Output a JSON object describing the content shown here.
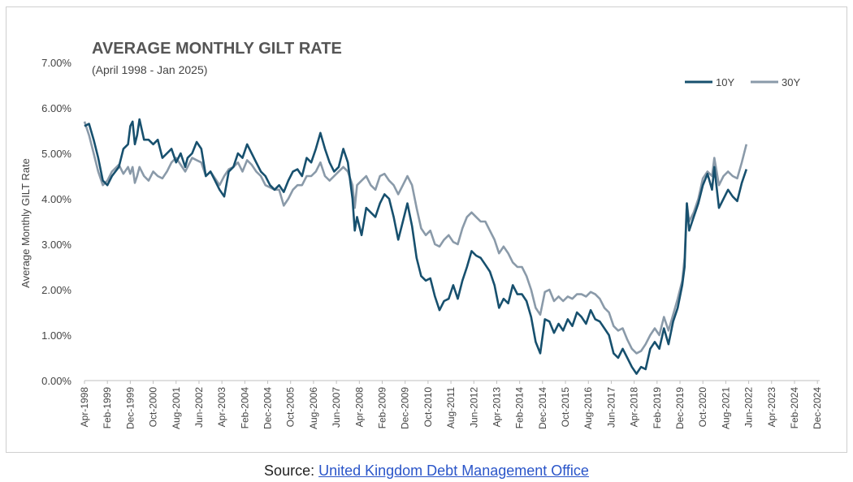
{
  "chart_data": {
    "type": "line",
    "title": "AVERAGE MONTHLY GILT RATE",
    "subtitle": "(April 1998 - Jan 2025)",
    "ylabel": "Average Monthly GILT Rate",
    "xlabel": "",
    "ylim": [
      0,
      7
    ],
    "ytick_labels": [
      "0.00%",
      "1.00%",
      "2.00%",
      "3.00%",
      "4.00%",
      "5.00%",
      "6.00%",
      "7.00%"
    ],
    "xtick_labels": [
      "Apr-1998",
      "Feb-1999",
      "Dec-1999",
      "Oct-2000",
      "Aug-2001",
      "Jun-2002",
      "Apr-2003",
      "Feb-2004",
      "Dec-2004",
      "Oct-2005",
      "Aug-2006",
      "Jun-2007",
      "Apr-2008",
      "Feb-2009",
      "Dec-2009",
      "Oct-2010",
      "Aug-2011",
      "Jun-2012",
      "Apr-2013",
      "Feb-2014",
      "Dec-2014",
      "Oct-2015",
      "Aug-2016",
      "Jun-2017",
      "Apr-2018",
      "Feb-2019",
      "Dec-2019",
      "Oct-2020",
      "Aug-2021",
      "Jun-2022",
      "Apr-2023",
      "Feb-2024",
      "Dec-2024"
    ],
    "x_range_months": [
      0,
      321
    ],
    "legend_position": "top-right",
    "series": [
      {
        "name": "10Y",
        "color": "#17506e",
        "points": [
          [
            0,
            5.6
          ],
          [
            2,
            5.65
          ],
          [
            4,
            5.3
          ],
          [
            6,
            4.9
          ],
          [
            8,
            4.4
          ],
          [
            10,
            4.3
          ],
          [
            12,
            4.5
          ],
          [
            15,
            4.7
          ],
          [
            17,
            5.1
          ],
          [
            19,
            5.2
          ],
          [
            20,
            5.6
          ],
          [
            21,
            5.7
          ],
          [
            22,
            5.2
          ],
          [
            23,
            5.4
          ],
          [
            24,
            5.75
          ],
          [
            26,
            5.3
          ],
          [
            28,
            5.3
          ],
          [
            30,
            5.2
          ],
          [
            32,
            5.3
          ],
          [
            34,
            4.9
          ],
          [
            36,
            5.0
          ],
          [
            38,
            5.1
          ],
          [
            40,
            4.8
          ],
          [
            42,
            5.0
          ],
          [
            44,
            4.7
          ],
          [
            45,
            4.9
          ],
          [
            47,
            5.0
          ],
          [
            49,
            5.25
          ],
          [
            51,
            5.1
          ],
          [
            53,
            4.5
          ],
          [
            55,
            4.6
          ],
          [
            57,
            4.4
          ],
          [
            59,
            4.2
          ],
          [
            61,
            4.05
          ],
          [
            63,
            4.6
          ],
          [
            65,
            4.7
          ],
          [
            67,
            5.0
          ],
          [
            69,
            4.9
          ],
          [
            71,
            5.2
          ],
          [
            73,
            5.0
          ],
          [
            75,
            4.8
          ],
          [
            77,
            4.6
          ],
          [
            79,
            4.5
          ],
          [
            81,
            4.3
          ],
          [
            83,
            4.2
          ],
          [
            85,
            4.3
          ],
          [
            87,
            4.15
          ],
          [
            89,
            4.4
          ],
          [
            91,
            4.6
          ],
          [
            93,
            4.65
          ],
          [
            95,
            4.5
          ],
          [
            97,
            4.9
          ],
          [
            99,
            4.8
          ],
          [
            101,
            5.1
          ],
          [
            103,
            5.45
          ],
          [
            105,
            5.1
          ],
          [
            107,
            4.8
          ],
          [
            109,
            4.6
          ],
          [
            111,
            4.7
          ],
          [
            113,
            5.1
          ],
          [
            115,
            4.8
          ],
          [
            117,
            4.0
          ],
          [
            118,
            3.3
          ],
          [
            119,
            3.6
          ],
          [
            121,
            3.2
          ],
          [
            123,
            3.8
          ],
          [
            125,
            3.7
          ],
          [
            127,
            3.6
          ],
          [
            129,
            3.9
          ],
          [
            131,
            4.1
          ],
          [
            133,
            4.0
          ],
          [
            135,
            3.6
          ],
          [
            137,
            3.1
          ],
          [
            139,
            3.5
          ],
          [
            141,
            3.9
          ],
          [
            143,
            3.4
          ],
          [
            145,
            2.7
          ],
          [
            147,
            2.3
          ],
          [
            149,
            2.2
          ],
          [
            151,
            2.25
          ],
          [
            153,
            1.85
          ],
          [
            155,
            1.55
          ],
          [
            157,
            1.75
          ],
          [
            159,
            1.8
          ],
          [
            161,
            2.1
          ],
          [
            163,
            1.8
          ],
          [
            165,
            2.2
          ],
          [
            167,
            2.5
          ],
          [
            169,
            2.85
          ],
          [
            171,
            2.75
          ],
          [
            173,
            2.7
          ],
          [
            175,
            2.55
          ],
          [
            177,
            2.4
          ],
          [
            179,
            2.1
          ],
          [
            181,
            1.6
          ],
          [
            183,
            1.8
          ],
          [
            185,
            1.7
          ],
          [
            187,
            2.1
          ],
          [
            189,
            1.9
          ],
          [
            191,
            1.9
          ],
          [
            193,
            1.75
          ],
          [
            195,
            1.4
          ],
          [
            197,
            0.85
          ],
          [
            199,
            0.6
          ],
          [
            201,
            1.35
          ],
          [
            203,
            1.3
          ],
          [
            205,
            1.05
          ],
          [
            207,
            1.25
          ],
          [
            209,
            1.1
          ],
          [
            211,
            1.35
          ],
          [
            213,
            1.2
          ],
          [
            215,
            1.5
          ],
          [
            217,
            1.4
          ],
          [
            219,
            1.25
          ],
          [
            221,
            1.55
          ],
          [
            223,
            1.35
          ],
          [
            225,
            1.3
          ],
          [
            227,
            1.15
          ],
          [
            229,
            1.0
          ],
          [
            231,
            0.6
          ],
          [
            233,
            0.5
          ],
          [
            235,
            0.7
          ],
          [
            237,
            0.5
          ],
          [
            239,
            0.3
          ],
          [
            241,
            0.15
          ],
          [
            243,
            0.3
          ],
          [
            245,
            0.25
          ],
          [
            247,
            0.7
          ],
          [
            249,
            0.85
          ],
          [
            251,
            0.7
          ],
          [
            253,
            1.15
          ],
          [
            255,
            0.8
          ],
          [
            257,
            1.3
          ],
          [
            259,
            1.6
          ],
          [
            261,
            2.1
          ],
          [
            262,
            2.5
          ],
          [
            263,
            3.9
          ],
          [
            264,
            3.3
          ],
          [
            266,
            3.6
          ],
          [
            268,
            3.9
          ],
          [
            270,
            4.3
          ],
          [
            272,
            4.55
          ],
          [
            274,
            4.2
          ],
          [
            275,
            4.7
          ],
          [
            277,
            3.8
          ],
          [
            279,
            4.0
          ],
          [
            281,
            4.2
          ],
          [
            283,
            4.05
          ],
          [
            285,
            3.95
          ],
          [
            287,
            4.35
          ],
          [
            289,
            4.65
          ]
        ]
      },
      {
        "name": "30Y",
        "color": "#8a9aa9",
        "points": [
          [
            0,
            5.7
          ],
          [
            2,
            5.4
          ],
          [
            4,
            5.0
          ],
          [
            6,
            4.6
          ],
          [
            8,
            4.3
          ],
          [
            10,
            4.4
          ],
          [
            12,
            4.6
          ],
          [
            15,
            4.75
          ],
          [
            17,
            4.55
          ],
          [
            19,
            4.7
          ],
          [
            20,
            4.55
          ],
          [
            21,
            4.7
          ],
          [
            22,
            4.35
          ],
          [
            23,
            4.5
          ],
          [
            24,
            4.7
          ],
          [
            26,
            4.5
          ],
          [
            28,
            4.4
          ],
          [
            30,
            4.6
          ],
          [
            32,
            4.5
          ],
          [
            34,
            4.45
          ],
          [
            36,
            4.6
          ],
          [
            38,
            4.8
          ],
          [
            40,
            4.9
          ],
          [
            42,
            4.75
          ],
          [
            44,
            4.6
          ],
          [
            45,
            4.7
          ],
          [
            47,
            4.9
          ],
          [
            49,
            4.85
          ],
          [
            51,
            4.8
          ],
          [
            53,
            4.5
          ],
          [
            55,
            4.6
          ],
          [
            57,
            4.45
          ],
          [
            59,
            4.3
          ],
          [
            61,
            4.5
          ],
          [
            63,
            4.65
          ],
          [
            65,
            4.7
          ],
          [
            67,
            4.8
          ],
          [
            69,
            4.6
          ],
          [
            71,
            4.85
          ],
          [
            73,
            4.75
          ],
          [
            75,
            4.6
          ],
          [
            77,
            4.5
          ],
          [
            79,
            4.3
          ],
          [
            81,
            4.25
          ],
          [
            83,
            4.2
          ],
          [
            85,
            4.2
          ],
          [
            87,
            3.85
          ],
          [
            89,
            4.0
          ],
          [
            91,
            4.2
          ],
          [
            93,
            4.3
          ],
          [
            95,
            4.3
          ],
          [
            97,
            4.5
          ],
          [
            99,
            4.5
          ],
          [
            101,
            4.6
          ],
          [
            103,
            4.8
          ],
          [
            105,
            4.5
          ],
          [
            107,
            4.4
          ],
          [
            109,
            4.5
          ],
          [
            111,
            4.6
          ],
          [
            113,
            4.7
          ],
          [
            115,
            4.6
          ],
          [
            117,
            4.3
          ],
          [
            118,
            3.8
          ],
          [
            119,
            4.3
          ],
          [
            121,
            4.4
          ],
          [
            123,
            4.5
          ],
          [
            125,
            4.3
          ],
          [
            127,
            4.2
          ],
          [
            129,
            4.5
          ],
          [
            131,
            4.55
          ],
          [
            133,
            4.4
          ],
          [
            135,
            4.3
          ],
          [
            137,
            4.1
          ],
          [
            139,
            4.3
          ],
          [
            141,
            4.5
          ],
          [
            143,
            4.3
          ],
          [
            145,
            3.8
          ],
          [
            147,
            3.35
          ],
          [
            149,
            3.2
          ],
          [
            151,
            3.3
          ],
          [
            153,
            3.0
          ],
          [
            155,
            2.95
          ],
          [
            157,
            3.1
          ],
          [
            159,
            3.2
          ],
          [
            161,
            3.05
          ],
          [
            163,
            3.0
          ],
          [
            165,
            3.35
          ],
          [
            167,
            3.6
          ],
          [
            169,
            3.7
          ],
          [
            171,
            3.6
          ],
          [
            173,
            3.5
          ],
          [
            175,
            3.5
          ],
          [
            177,
            3.3
          ],
          [
            179,
            3.1
          ],
          [
            181,
            2.8
          ],
          [
            183,
            2.95
          ],
          [
            185,
            2.8
          ],
          [
            187,
            2.6
          ],
          [
            189,
            2.5
          ],
          [
            191,
            2.5
          ],
          [
            193,
            2.3
          ],
          [
            195,
            2.0
          ],
          [
            197,
            1.6
          ],
          [
            199,
            1.45
          ],
          [
            201,
            1.95
          ],
          [
            203,
            2.0
          ],
          [
            205,
            1.75
          ],
          [
            207,
            1.85
          ],
          [
            209,
            1.75
          ],
          [
            211,
            1.85
          ],
          [
            213,
            1.8
          ],
          [
            215,
            1.9
          ],
          [
            217,
            1.9
          ],
          [
            219,
            1.85
          ],
          [
            221,
            1.95
          ],
          [
            223,
            1.9
          ],
          [
            225,
            1.8
          ],
          [
            227,
            1.6
          ],
          [
            229,
            1.5
          ],
          [
            231,
            1.2
          ],
          [
            233,
            1.1
          ],
          [
            235,
            1.15
          ],
          [
            237,
            0.9
          ],
          [
            239,
            0.7
          ],
          [
            241,
            0.6
          ],
          [
            243,
            0.65
          ],
          [
            245,
            0.8
          ],
          [
            247,
            1.0
          ],
          [
            249,
            1.15
          ],
          [
            251,
            1.0
          ],
          [
            253,
            1.4
          ],
          [
            255,
            1.1
          ],
          [
            257,
            1.45
          ],
          [
            259,
            1.8
          ],
          [
            261,
            2.2
          ],
          [
            262,
            2.7
          ],
          [
            263,
            3.9
          ],
          [
            264,
            3.5
          ],
          [
            266,
            3.7
          ],
          [
            268,
            4.0
          ],
          [
            270,
            4.45
          ],
          [
            272,
            4.6
          ],
          [
            274,
            4.5
          ],
          [
            275,
            4.9
          ],
          [
            277,
            4.3
          ],
          [
            279,
            4.5
          ],
          [
            281,
            4.6
          ],
          [
            283,
            4.5
          ],
          [
            285,
            4.45
          ],
          [
            287,
            4.8
          ],
          [
            289,
            5.2
          ]
        ]
      }
    ]
  },
  "source": {
    "prefix": "Source: ",
    "link_text": "United Kingdom Debt Management Office"
  }
}
